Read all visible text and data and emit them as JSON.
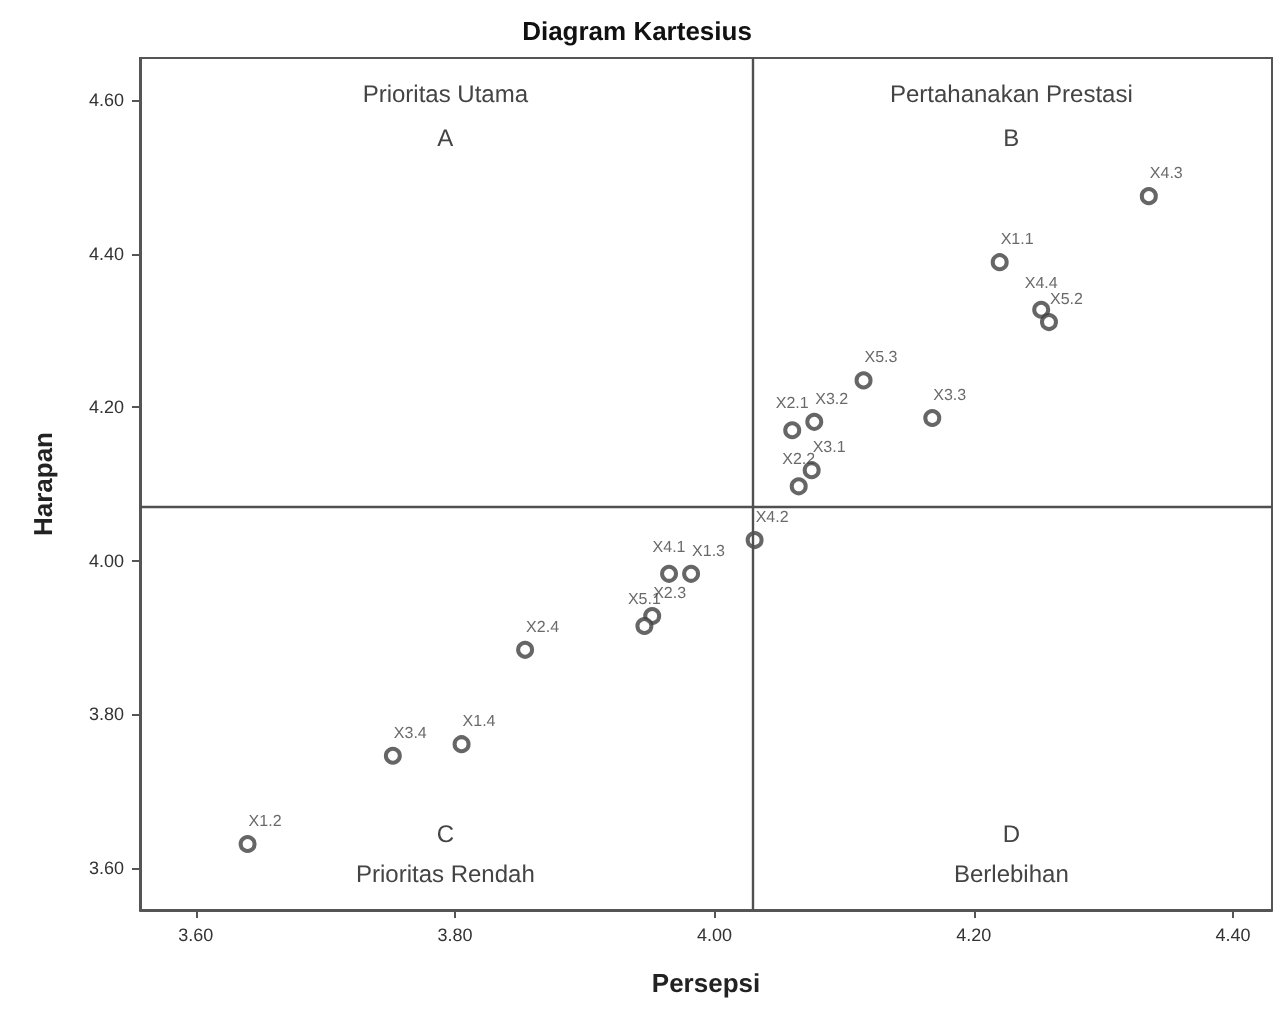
{
  "chart_data": {
    "type": "scatter",
    "title": "Diagram Kartesius",
    "xlabel": "Persepsi",
    "ylabel": "Harapan",
    "x": [
      4.335,
      4.22,
      4.252,
      4.258,
      4.115,
      4.168,
      4.06,
      4.077,
      4.075,
      4.065,
      4.031,
      3.965,
      3.982,
      3.952,
      3.946,
      3.854,
      3.805,
      3.752,
      3.64
    ],
    "values": [
      4.475,
      4.389,
      4.327,
      4.311,
      4.235,
      4.186,
      4.17,
      4.181,
      4.118,
      4.097,
      4.027,
      3.983,
      3.983,
      3.928,
      3.915,
      3.884,
      3.761,
      3.746,
      3.631
    ],
    "value_labels": [
      "X4.3",
      "X1.1",
      "X4.4",
      "X5.2",
      "X5.3",
      "X3.3",
      "X2.1",
      "X3.2",
      "X3.1",
      "X2.2",
      "X4.2",
      "X4.1",
      "X1.3",
      "X2.3",
      "X5.1",
      "X2.4",
      "X1.4",
      "X3.4",
      "X1.2"
    ],
    "color": "#404040",
    "marker": "circle",
    "xlim": [
      3.557,
      4.43
    ],
    "xticks": [
      {
        "value": 3.6,
        "label": "3.60"
      },
      {
        "value": 3.8,
        "label": "3.80"
      },
      {
        "value": 4.0,
        "label": "4.00"
      },
      {
        "value": 4.2,
        "label": "4.20"
      },
      {
        "value": 4.4,
        "label": "4.40"
      }
    ],
    "ylim": [
      3.545,
      4.655
    ],
    "yticks": [
      {
        "value": 3.6,
        "label": "3.60"
      },
      {
        "value": 3.8,
        "label": "3.80"
      },
      {
        "value": 4.0,
        "label": "4.00"
      },
      {
        "value": 4.2,
        "label": "4.20"
      },
      {
        "value": 4.4,
        "label": "4.40"
      },
      {
        "value": 4.6,
        "label": "4.60"
      }
    ],
    "ref_lines": [
      {
        "axis": "x",
        "value": 4.028,
        "color": "#505050"
      },
      {
        "axis": "y",
        "value": 4.071,
        "color": "#505050"
      }
    ],
    "annotations": [
      "Prioritas Utama",
      "A",
      "Pertahanakan Prestasi",
      "B",
      "C",
      "Prioritas Rendah",
      "D",
      "Berlebihan"
    ],
    "grid": false
  }
}
